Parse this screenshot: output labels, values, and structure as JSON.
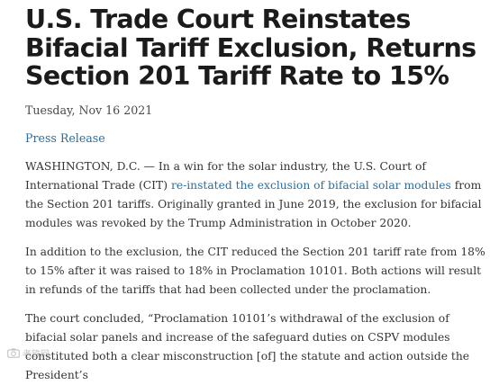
{
  "article": {
    "headline": "U.S. Trade Court Reinstates Bifacial Tariff Exclusion, Returns Section 201 Tariff Rate to 15%",
    "date": "Tuesday, Nov 16 2021",
    "category_link": "Press Release",
    "paragraphs": [
      {
        "before": "WASHINGTON, D.C. — In a win for the solar industry, the U.S. Court of International Trade (CIT) ",
        "link": "re-instated the exclusion of bifacial solar modules",
        "after": " from the Section 201 tariffs. Originally granted in June 2019, the exclusion for bifacial modules was revoked by the Trump Administration in October 2020."
      },
      {
        "text": "In addition to the exclusion, the CIT reduced the Section 201 tariff rate from 18% to 15% after it was raised to 18% in Proclamation 10101. Both actions will result in refunds of the tariffs that had been collected under the proclamation."
      },
      {
        "text": "The court concluded, “Proclamation 10101’s withdrawal of the exclusion of bifacial solar panels and increase of the safeguard duties on CSPV modules constituted both a clear misconstruction [of] the statute and action outside the President’s"
      }
    ]
  },
  "watermark": {
    "icon": "camera-watermark-icon",
    "text": "老铁网"
  }
}
